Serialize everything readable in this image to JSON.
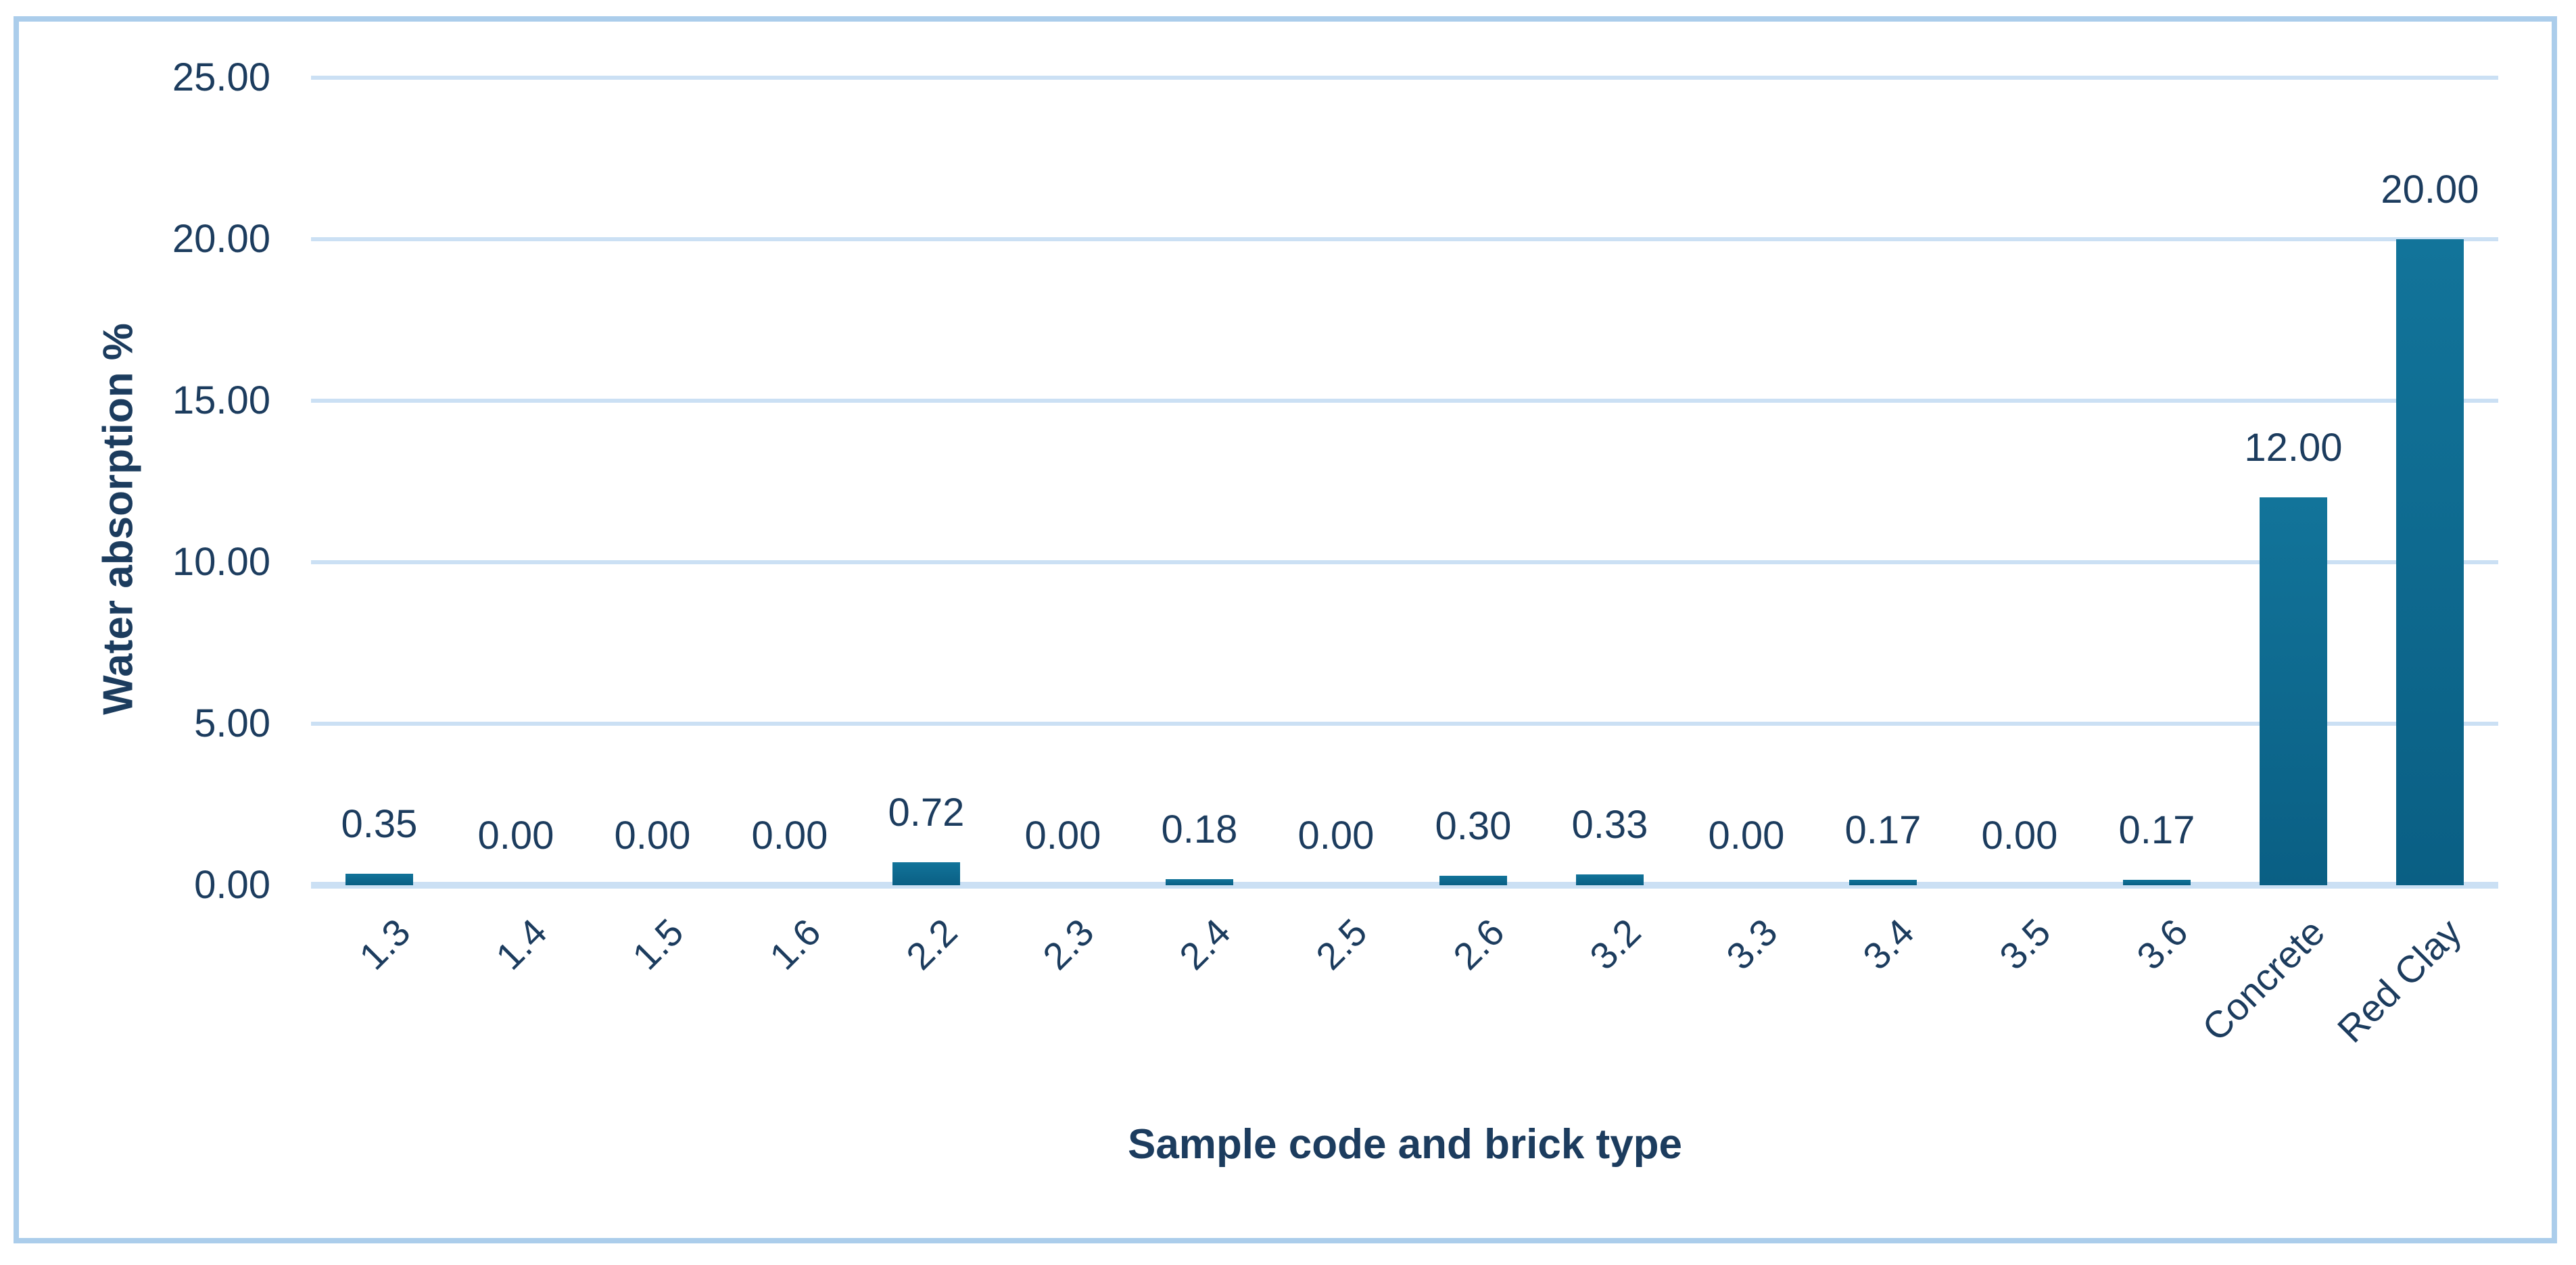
{
  "chart_data": {
    "type": "bar",
    "title": "",
    "xlabel": "Sample code and brick type",
    "ylabel": "Water absorption %",
    "categories": [
      "1.3",
      "1.4",
      "1.5",
      "1.6",
      "2.2",
      "2.3",
      "2.4",
      "2.5",
      "2.6",
      "3.2",
      "3.3",
      "3.4",
      "3.5",
      "3.6",
      "Concrete",
      "Red Clay"
    ],
    "values": [
      0.35,
      0.0,
      0.0,
      0.0,
      0.72,
      0.0,
      0.18,
      0.0,
      0.3,
      0.33,
      0.0,
      0.17,
      0.0,
      0.17,
      12.0,
      20.0
    ],
    "data_labels": [
      "0.35",
      "0.00",
      "0.00",
      "0.00",
      "0.72",
      "0.00",
      "0.18",
      "0.00",
      "0.30",
      "0.33",
      "0.00",
      "0.17",
      "0.00",
      "0.17",
      "12.00",
      "20.00"
    ],
    "ylim": [
      0,
      25
    ],
    "ytick_step": 5,
    "ytick_labels": [
      "0.00",
      "5.00",
      "10.00",
      "15.00",
      "20.00",
      "25.00"
    ],
    "x_tick_rotation_deg": -45,
    "grid": "horizontal",
    "legend": "none",
    "colors": {
      "bar_color": "#0e6c92",
      "bar_color_top": "#12749a",
      "bar_color_bottom": "#0a5f84",
      "gridline_color": "#cbe0f4",
      "baseline_color": "#cbe0f4",
      "text_color": "#1c3c5e",
      "frame_border_color": "#abcdeb",
      "background": "#ffffff"
    }
  }
}
